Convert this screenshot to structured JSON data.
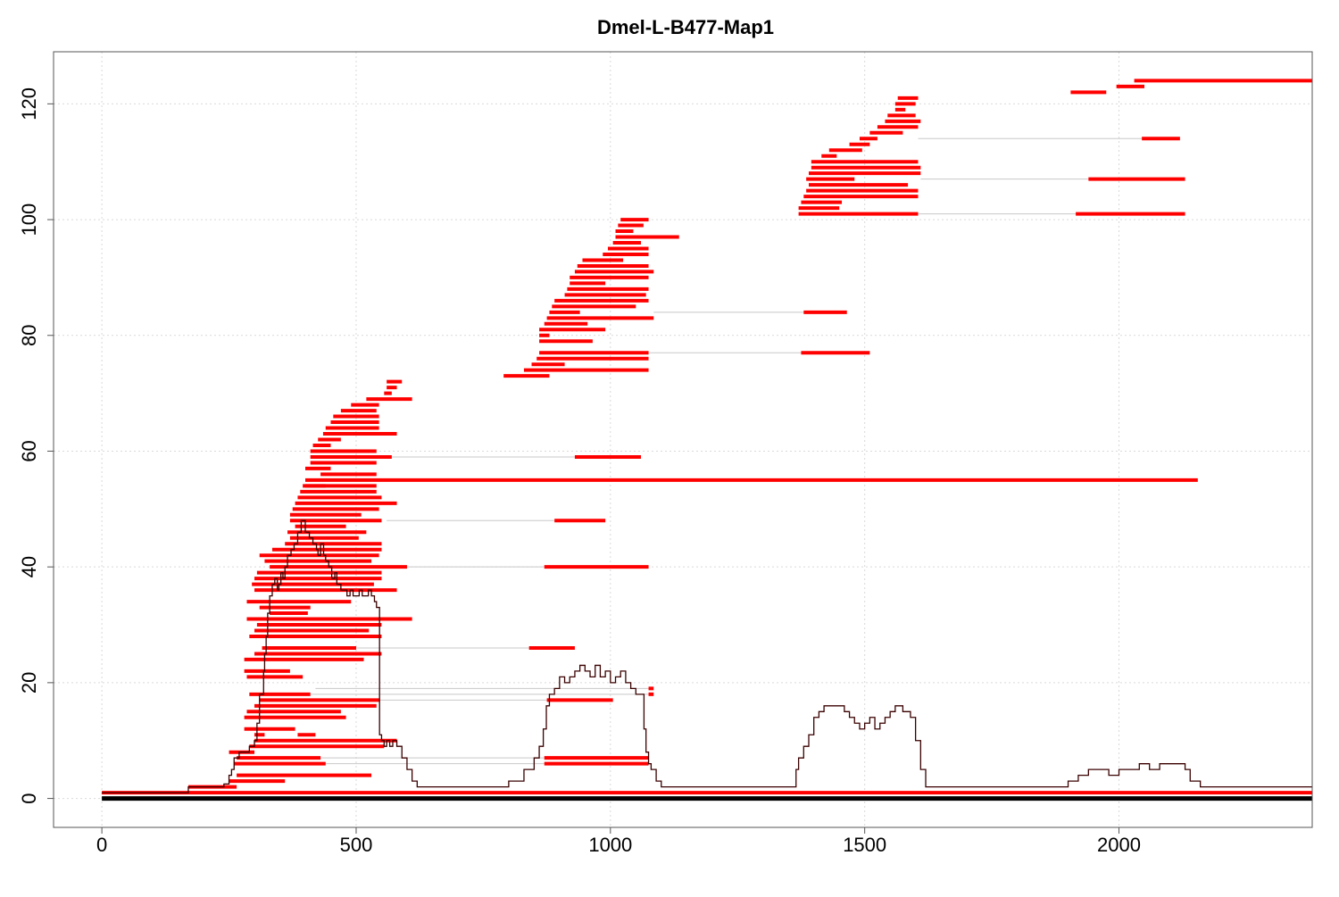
{
  "chart_data": {
    "type": "line",
    "title": "Dmel-L-B477-Map1",
    "xlabel": "",
    "ylabel": "",
    "xlim": [
      -95,
      2380
    ],
    "ylim": [
      -5,
      129
    ],
    "x_ticks": [
      0,
      500,
      1000,
      1500,
      2000
    ],
    "x_tick_labels": [
      "0",
      "500",
      "1000",
      "1500",
      "2000"
    ],
    "y_ticks": [
      0,
      20,
      40,
      60,
      80,
      100,
      120
    ],
    "y_tick_labels": [
      "0",
      "20",
      "40",
      "60",
      "80",
      "100",
      "120"
    ],
    "grid": true,
    "colors": {
      "segment": "#ff0000",
      "link": "#c8c8c8",
      "coverage": "#3a0000",
      "reference": "#000000",
      "grid": "#d9d9d9"
    },
    "reference_line": {
      "x": [
        0,
        2380
      ],
      "y": 0
    },
    "baseline_segment": {
      "x": [
        0,
        2380
      ],
      "y": 1
    },
    "segments": [
      [
        170,
        265,
        2
      ],
      [
        250,
        360,
        3
      ],
      [
        265,
        530,
        4
      ],
      [
        260,
        440,
        6
      ],
      [
        265,
        430,
        7
      ],
      [
        250,
        300,
        8
      ],
      [
        290,
        555,
        9
      ],
      [
        300,
        580,
        10
      ],
      [
        385,
        420,
        11
      ],
      [
        300,
        320,
        11
      ],
      [
        280,
        380,
        12
      ],
      [
        280,
        480,
        14
      ],
      [
        285,
        470,
        15
      ],
      [
        300,
        540,
        16
      ],
      [
        310,
        545,
        17
      ],
      [
        290,
        410,
        18
      ],
      [
        285,
        395,
        21
      ],
      [
        280,
        370,
        22
      ],
      [
        280,
        515,
        24
      ],
      [
        300,
        550,
        25
      ],
      [
        315,
        500,
        26
      ],
      [
        290,
        550,
        28
      ],
      [
        300,
        525,
        29
      ],
      [
        305,
        550,
        30
      ],
      [
        285,
        610,
        31
      ],
      [
        330,
        405,
        32
      ],
      [
        310,
        410,
        33
      ],
      [
        285,
        490,
        34
      ],
      [
        300,
        580,
        36
      ],
      [
        295,
        535,
        37
      ],
      [
        300,
        550,
        38
      ],
      [
        305,
        550,
        39
      ],
      [
        330,
        600,
        40
      ],
      [
        320,
        530,
        41
      ],
      [
        310,
        545,
        42
      ],
      [
        335,
        550,
        43
      ],
      [
        360,
        550,
        44
      ],
      [
        370,
        505,
        45
      ],
      [
        365,
        520,
        46
      ],
      [
        380,
        480,
        47
      ],
      [
        370,
        550,
        48
      ],
      [
        370,
        510,
        49
      ],
      [
        375,
        545,
        50
      ],
      [
        380,
        580,
        51
      ],
      [
        385,
        550,
        52
      ],
      [
        390,
        540,
        53
      ],
      [
        395,
        540,
        54
      ],
      [
        400,
        440,
        54
      ],
      [
        400,
        2155,
        55
      ],
      [
        430,
        540,
        56
      ],
      [
        400,
        450,
        57
      ],
      [
        410,
        540,
        58
      ],
      [
        410,
        570,
        59
      ],
      [
        410,
        540,
        60
      ],
      [
        415,
        450,
        61
      ],
      [
        425,
        470,
        62
      ],
      [
        435,
        580,
        63
      ],
      [
        440,
        545,
        64
      ],
      [
        450,
        545,
        65
      ],
      [
        455,
        545,
        66
      ],
      [
        470,
        540,
        67
      ],
      [
        490,
        545,
        68
      ],
      [
        520,
        610,
        69
      ],
      [
        555,
        570,
        70
      ],
      [
        560,
        580,
        71
      ],
      [
        560,
        590,
        72
      ],
      [
        790,
        880,
        73
      ],
      [
        830,
        1075,
        74
      ],
      [
        845,
        910,
        75
      ],
      [
        855,
        1075,
        76
      ],
      [
        860,
        1075,
        77
      ],
      [
        860,
        965,
        79
      ],
      [
        860,
        880,
        80
      ],
      [
        860,
        990,
        81
      ],
      [
        870,
        955,
        82
      ],
      [
        875,
        1085,
        83
      ],
      [
        880,
        940,
        84
      ],
      [
        885,
        1050,
        85
      ],
      [
        890,
        1075,
        86
      ],
      [
        910,
        1070,
        87
      ],
      [
        915,
        1075,
        88
      ],
      [
        920,
        990,
        89
      ],
      [
        920,
        1075,
        90
      ],
      [
        930,
        1085,
        91
      ],
      [
        935,
        1075,
        92
      ],
      [
        945,
        1025,
        93
      ],
      [
        985,
        1075,
        94
      ],
      [
        995,
        1075,
        95
      ],
      [
        1005,
        1060,
        96
      ],
      [
        1010,
        1135,
        97
      ],
      [
        1010,
        1045,
        98
      ],
      [
        1015,
        1065,
        99
      ],
      [
        1020,
        1075,
        100
      ],
      [
        1370,
        1605,
        101
      ],
      [
        1370,
        1450,
        102
      ],
      [
        1375,
        1455,
        103
      ],
      [
        1380,
        1605,
        104
      ],
      [
        1385,
        1605,
        105
      ],
      [
        1390,
        1585,
        106
      ],
      [
        1385,
        1480,
        107
      ],
      [
        1390,
        1610,
        108
      ],
      [
        1395,
        1610,
        109
      ],
      [
        1395,
        1605,
        110
      ],
      [
        1415,
        1445,
        111
      ],
      [
        1430,
        1495,
        112
      ],
      [
        1470,
        1510,
        113
      ],
      [
        1490,
        1525,
        114
      ],
      [
        1510,
        1575,
        115
      ],
      [
        1525,
        1605,
        116
      ],
      [
        1540,
        1610,
        117
      ],
      [
        1545,
        1600,
        118
      ],
      [
        1560,
        1580,
        119
      ],
      [
        1560,
        1600,
        120
      ],
      [
        1565,
        1605,
        121
      ],
      [
        1905,
        1975,
        122
      ],
      [
        1995,
        2050,
        123
      ],
      [
        2030,
        2380,
        124
      ],
      [
        1940,
        2130,
        107
      ],
      [
        1915,
        2130,
        101
      ],
      [
        2045,
        2120,
        114
      ],
      [
        1380,
        1465,
        84
      ],
      [
        1375,
        1510,
        77
      ],
      [
        930,
        1060,
        59
      ],
      [
        890,
        990,
        48
      ],
      [
        870,
        1075,
        40
      ],
      [
        840,
        930,
        26
      ],
      [
        1075,
        1085,
        19
      ],
      [
        1075,
        1085,
        18
      ],
      [
        875,
        1005,
        17
      ],
      [
        870,
        1075,
        7
      ],
      [
        870,
        1075,
        6
      ]
    ],
    "links": [
      [
        560,
        930,
        59
      ],
      [
        560,
        890,
        48
      ],
      [
        545,
        870,
        40
      ],
      [
        500,
        840,
        26
      ],
      [
        420,
        1075,
        19
      ],
      [
        410,
        1075,
        18
      ],
      [
        410,
        875,
        17
      ],
      [
        430,
        870,
        7
      ],
      [
        430,
        870,
        6
      ],
      [
        1085,
        1380,
        84
      ],
      [
        1075,
        1375,
        77
      ],
      [
        1610,
        1940,
        107
      ],
      [
        1605,
        1915,
        101
      ],
      [
        1605,
        2045,
        114
      ]
    ],
    "coverage": {
      "x": [
        0,
        170,
        240,
        250,
        255,
        260,
        270,
        290,
        300,
        305,
        310,
        318,
        320,
        323,
        326,
        330,
        335,
        340,
        345,
        348,
        352,
        356,
        360,
        365,
        372,
        378,
        385,
        392,
        400,
        408,
        415,
        422,
        425,
        430,
        436,
        440,
        446,
        452,
        458,
        462,
        466,
        470,
        476,
        482,
        488,
        494,
        500,
        506,
        512,
        518,
        524,
        530,
        536,
        540,
        546,
        550,
        555,
        560,
        566,
        572,
        580,
        590,
        600,
        610,
        620,
        640,
        780,
        800,
        830,
        850,
        860,
        868,
        874,
        880,
        890,
        900,
        910,
        920,
        930,
        940,
        950,
        960,
        970,
        980,
        990,
        1000,
        1010,
        1020,
        1030,
        1040,
        1050,
        1060,
        1066,
        1070,
        1075,
        1080,
        1090,
        1100,
        1120,
        1140,
        1360,
        1365,
        1370,
        1380,
        1390,
        1400,
        1410,
        1420,
        1440,
        1460,
        1470,
        1480,
        1490,
        1500,
        1510,
        1520,
        1530,
        1540,
        1550,
        1560,
        1575,
        1590,
        1600,
        1610,
        1620,
        1880,
        1900,
        1920,
        1940,
        1960,
        1980,
        2000,
        2020,
        2040,
        2060,
        2080,
        2100,
        2120,
        2130,
        2140,
        2160,
        2380
      ],
      "y": [
        1,
        2,
        2.5,
        4,
        5,
        7,
        8,
        9,
        10,
        13,
        18,
        22,
        25,
        28,
        32,
        35,
        37,
        38,
        36,
        37,
        39,
        38,
        40,
        42,
        43,
        44,
        46,
        48,
        46,
        45,
        44,
        43,
        42,
        44,
        42,
        41,
        40,
        38,
        39,
        37,
        37,
        36,
        36,
        35,
        36,
        35,
        35,
        36,
        35,
        35,
        36,
        35,
        34,
        33,
        11,
        10,
        9,
        10,
        9,
        10,
        9,
        7,
        5,
        3,
        2,
        2,
        2,
        3,
        5,
        7,
        9,
        12,
        16,
        18,
        19,
        21,
        20,
        21,
        22,
        23,
        22,
        21,
        23,
        21,
        22,
        20,
        21,
        22,
        20,
        19,
        18,
        18,
        12,
        8,
        6,
        5,
        3,
        2,
        2,
        2,
        2,
        5,
        7,
        9,
        11,
        14,
        15,
        16,
        16,
        15,
        14,
        13,
        12,
        13,
        14,
        12,
        13,
        14,
        15,
        16,
        15,
        14,
        10,
        5,
        2,
        2,
        3,
        4,
        5,
        5,
        4,
        5,
        5,
        6,
        5,
        6,
        6,
        6,
        5,
        3,
        2,
        2
      ]
    }
  }
}
